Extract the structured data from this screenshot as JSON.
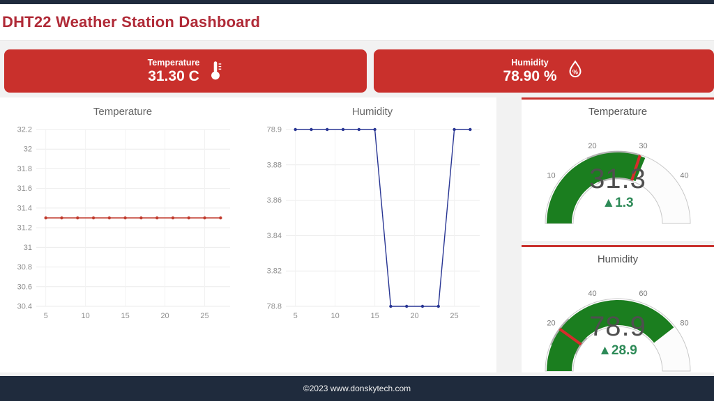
{
  "colors": {
    "accent_red": "#c9302c",
    "title_red": "#b02a37",
    "navy": "#1f2b3d",
    "temp_line": "#c0392b",
    "humidity_line": "#283593",
    "gauge_green": "#1b7e1f",
    "delta_green": "#2d8a57",
    "threshold_red": "#d62c2c"
  },
  "header": {
    "title": "DHT22 Weather Station Dashboard"
  },
  "cards": {
    "temperature": {
      "label": "Temperature",
      "value": "31.30 C",
      "icon": "thermometer-icon"
    },
    "humidity": {
      "label": "Humidity",
      "value": "78.90 %",
      "icon": "humidity-droplet-icon"
    }
  },
  "footer": {
    "text": "©2023 www.donskytech.com"
  },
  "chart_data": [
    {
      "type": "line",
      "title": "Temperature",
      "x": [
        5,
        7,
        9,
        11,
        13,
        15,
        17,
        19,
        21,
        23,
        25,
        27
      ],
      "y": [
        31.3,
        31.3,
        31.3,
        31.3,
        31.3,
        31.3,
        31.3,
        31.3,
        31.3,
        31.3,
        31.3,
        31.3
      ],
      "x_ticks": [
        5,
        10,
        15,
        20,
        25
      ],
      "y_tick_labels": [
        "32.2",
        "32",
        "31.8",
        "31.6",
        "31.4",
        "31.2",
        "31",
        "30.8",
        "30.6",
        "30.4"
      ],
      "xlim": [
        3.8,
        28.2
      ],
      "ylim": [
        30.4,
        32.2
      ],
      "grid": true,
      "color": "#c0392b"
    },
    {
      "type": "line",
      "title": "Humidity",
      "x": [
        5,
        7,
        9,
        11,
        13,
        15,
        17,
        19,
        21,
        23,
        25,
        27
      ],
      "y": [
        78.9,
        78.9,
        78.9,
        78.9,
        78.9,
        78.9,
        78.8,
        78.8,
        78.8,
        78.8,
        78.9,
        78.9
      ],
      "x_ticks": [
        5,
        10,
        15,
        20,
        25
      ],
      "y_tick_labels": [
        "78.9",
        "3.88",
        "3.86",
        "3.84",
        "3.82",
        "78.8"
      ],
      "xlim": [
        3.8,
        28.2
      ],
      "ylim": [
        78.8,
        78.9
      ],
      "grid": true,
      "color": "#283593"
    },
    {
      "type": "gauge",
      "title": "Temperature",
      "min": 0,
      "max": 50,
      "ticks": [
        10,
        20,
        30,
        40
      ],
      "value": 31.3,
      "value_display": "31.3",
      "delta_display": "▲1.3",
      "bar_color": "#1b7e1f",
      "step_range": [
        18,
        30
      ],
      "step_color": "#9e9e9e",
      "threshold": 30,
      "threshold_color": "#d62c2c"
    },
    {
      "type": "gauge",
      "title": "Humidity",
      "min": 0,
      "max": 100,
      "ticks": [
        20,
        40,
        60,
        80
      ],
      "value": 78.9,
      "value_display": "78.9",
      "delta_display": "▲28.9",
      "bar_color": "#1b7e1f",
      "step_range": [
        12,
        26
      ],
      "step_color": "#9e9e9e",
      "threshold": 20,
      "threshold_color": "#d62c2c"
    }
  ]
}
